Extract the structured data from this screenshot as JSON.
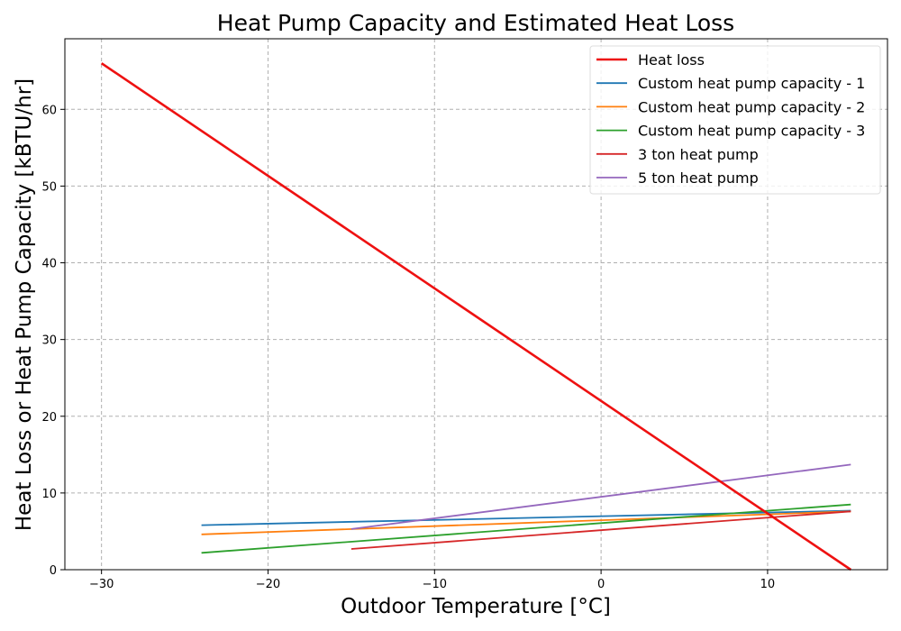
{
  "chart_data": {
    "type": "line",
    "title": "Heat Pump Capacity and Estimated Heat Loss",
    "xlabel": "Outdoor Temperature [°C]",
    "ylabel": "Heat Loss or Heat Pump Capacity [kBTU/hr]",
    "xlim": [
      -32.2,
      17.2
    ],
    "ylim": [
      0,
      69.2
    ],
    "x_ticks": [
      -30,
      -20,
      -10,
      0,
      10
    ],
    "x_tick_labels": [
      "−30",
      "−20",
      "−10",
      "0",
      "10"
    ],
    "y_ticks": [
      0,
      10,
      20,
      30,
      40,
      50,
      60
    ],
    "y_tick_labels": [
      "0",
      "10",
      "20",
      "30",
      "40",
      "50",
      "60"
    ],
    "grid": true,
    "legend_position": "top-right",
    "series": [
      {
        "name": "Heat loss",
        "color": "#ee1111",
        "width": "bold",
        "x": [
          -30,
          15
        ],
        "y": [
          66,
          0
        ]
      },
      {
        "name": "Custom heat pump capacity - 1",
        "color": "#1f77b4",
        "width": "normal",
        "x": [
          -24,
          15
        ],
        "y": [
          5.8,
          7.7
        ]
      },
      {
        "name": "Custom heat pump capacity - 2",
        "color": "#ff7f0e",
        "width": "normal",
        "x": [
          -24,
          15
        ],
        "y": [
          4.6,
          7.6
        ]
      },
      {
        "name": "Custom heat pump capacity - 3",
        "color": "#2ca02c",
        "width": "normal",
        "x": [
          -24,
          15
        ],
        "y": [
          2.2,
          8.5
        ]
      },
      {
        "name": "3 ton heat pump",
        "color": "#d62728",
        "width": "normal",
        "x": [
          -15,
          15
        ],
        "y": [
          2.7,
          7.6
        ]
      },
      {
        "name": "5 ton heat pump",
        "color": "#9467bd",
        "width": "normal",
        "x": [
          -15,
          15
        ],
        "y": [
          5.3,
          13.7
        ]
      }
    ]
  }
}
